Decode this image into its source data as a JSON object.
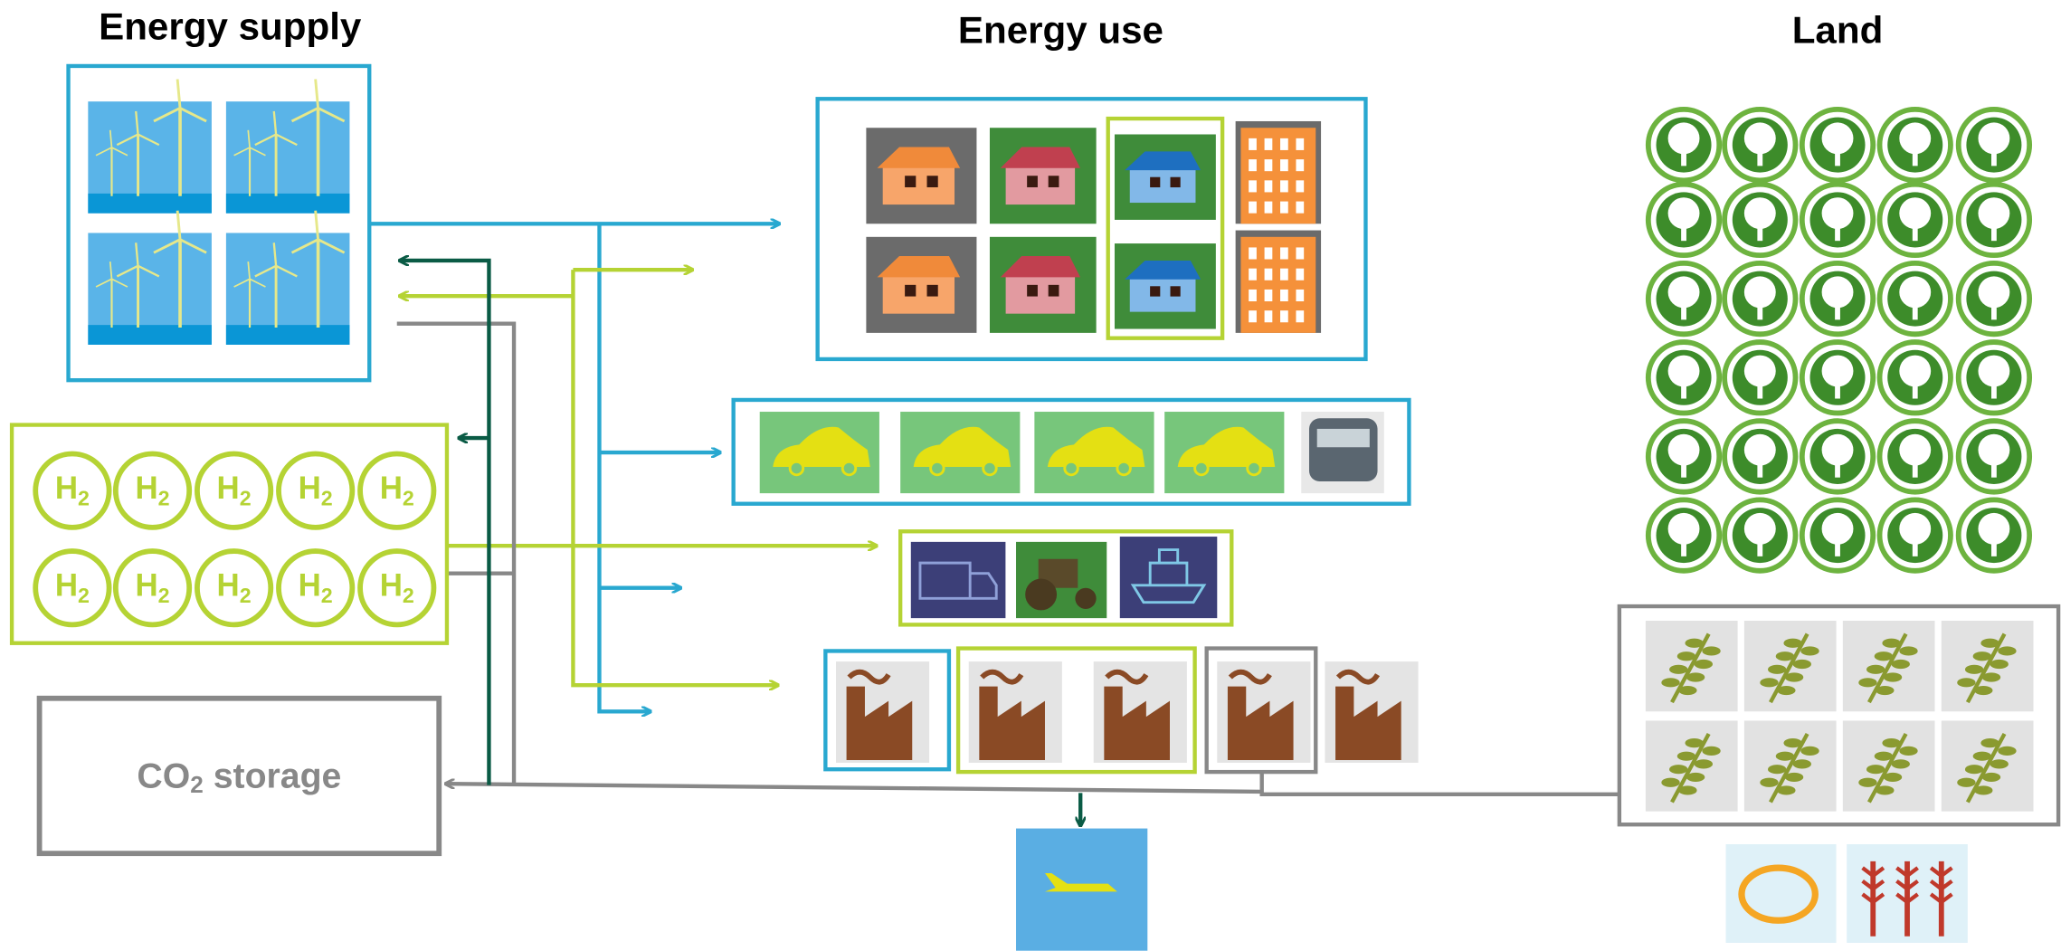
{
  "headings": {
    "supply": "Energy supply",
    "use": "Energy use",
    "land": "Land"
  },
  "hydrogen": [
    {
      "symbol": "H",
      "subscript": "2"
    },
    {
      "symbol": "H",
      "subscript": "2"
    },
    {
      "symbol": "H",
      "subscript": "2"
    },
    {
      "symbol": "H",
      "subscript": "2"
    },
    {
      "symbol": "H",
      "subscript": "2"
    },
    {
      "symbol": "H",
      "subscript": "2"
    },
    {
      "symbol": "H",
      "subscript": "2"
    },
    {
      "symbol": "H",
      "subscript": "2"
    },
    {
      "symbol": "H",
      "subscript": "2"
    },
    {
      "symbol": "H",
      "subscript": "2"
    }
  ],
  "co2_storage": {
    "prefix": "CO",
    "subscript": "2",
    "suffix": " storage"
  }
}
